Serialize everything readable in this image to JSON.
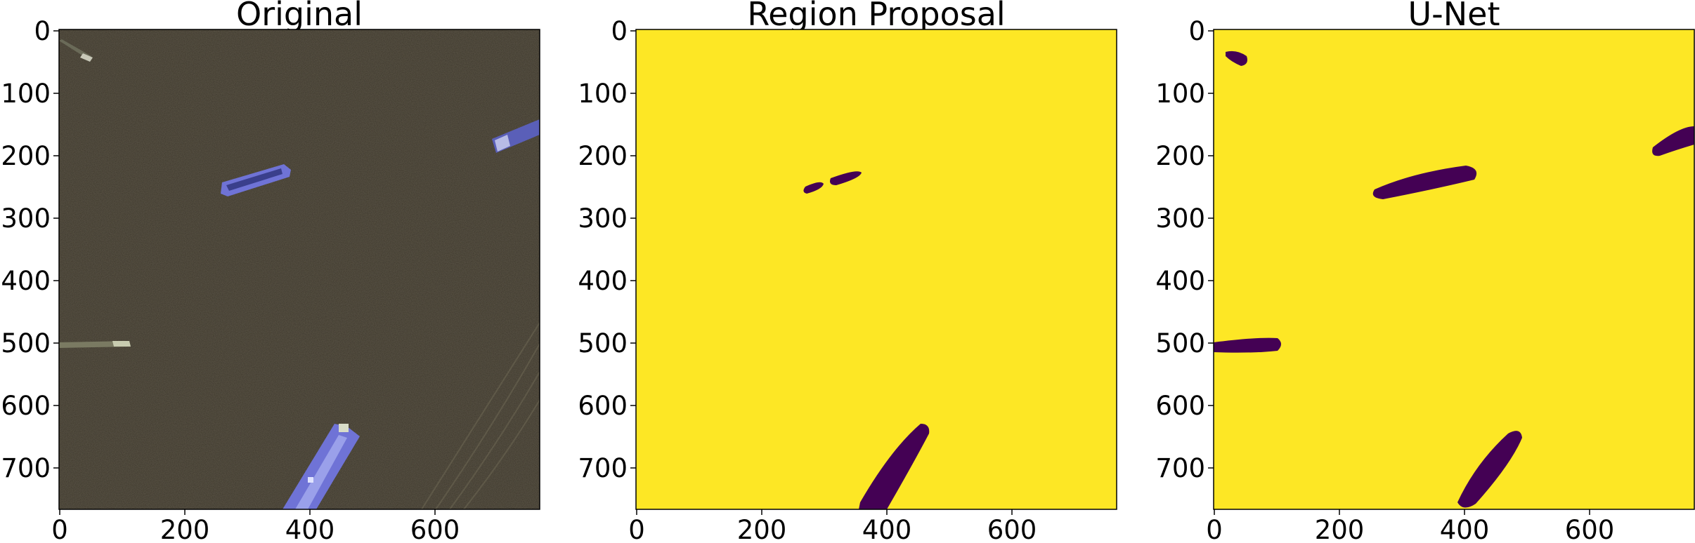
{
  "panels": [
    {
      "title": "Original",
      "kind": "satellite",
      "x_ticks": [
        "0",
        "200",
        "400",
        "600"
      ],
      "y_ticks": [
        "0",
        "100",
        "200",
        "300",
        "400",
        "500",
        "600",
        "700"
      ],
      "colors": {
        "water": "#3a3428",
        "ship": "#6f73d6",
        "ship_dark": "#3a3f8c"
      }
    },
    {
      "title": "Region Proposal",
      "kind": "mask",
      "x_ticks": [
        "0",
        "200",
        "400",
        "600"
      ],
      "y_ticks": [
        "0",
        "100",
        "200",
        "300",
        "400",
        "500",
        "600",
        "700"
      ],
      "colors": {
        "background": "#fde725",
        "foreground": "#440154"
      }
    },
    {
      "title": "U-Net",
      "kind": "mask",
      "x_ticks": [
        "0",
        "200",
        "400",
        "600"
      ],
      "y_ticks": [
        "0",
        "100",
        "200",
        "300",
        "400",
        "500",
        "600",
        "700"
      ],
      "colors": {
        "background": "#fde725",
        "foreground": "#440154"
      }
    }
  ],
  "chart_data": [
    {
      "type": "heatmap",
      "title": "Original",
      "xlim": [
        0,
        768
      ],
      "ylim": [
        768,
        0
      ],
      "xticks": [
        0,
        200,
        400,
        600
      ],
      "yticks": [
        0,
        100,
        200,
        300,
        400,
        500,
        600,
        700
      ]
    },
    {
      "type": "heatmap",
      "title": "Region Proposal",
      "xlim": [
        0,
        768
      ],
      "ylim": [
        768,
        0
      ],
      "xticks": [
        0,
        200,
        400,
        600
      ],
      "yticks": [
        0,
        100,
        200,
        300,
        400,
        500,
        600,
        700
      ]
    },
    {
      "type": "heatmap",
      "title": "U-Net",
      "xlim": [
        0,
        768
      ],
      "ylim": [
        768,
        0
      ],
      "xticks": [
        0,
        200,
        400,
        600
      ],
      "yticks": [
        0,
        100,
        200,
        300,
        400,
        500,
        600,
        700
      ]
    }
  ]
}
